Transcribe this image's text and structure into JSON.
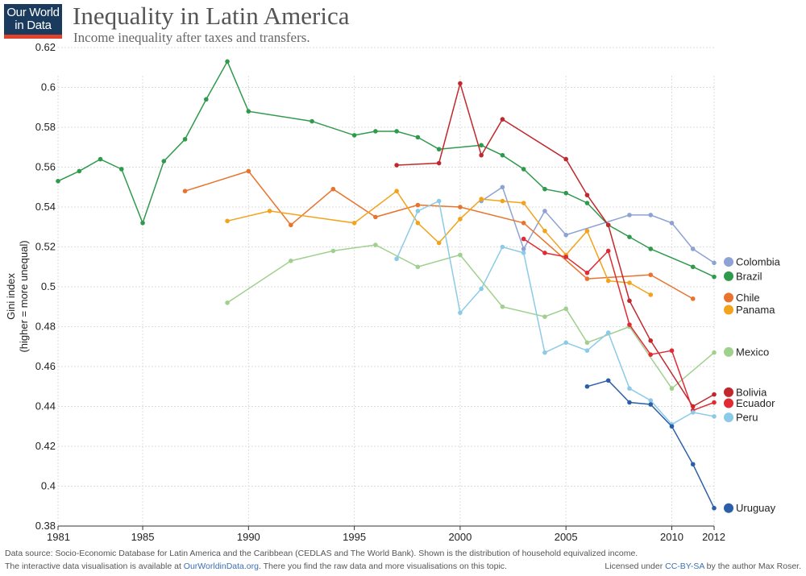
{
  "logo": {
    "line1": "Our World",
    "line2": "in Data"
  },
  "colors": {
    "background": "#ffffff",
    "grid": "#dddddd",
    "axis": "#333333",
    "link": "#3b6fb6",
    "logo_bg": "#1a3b5d",
    "logo_accent": "#e0432b"
  },
  "footer": {
    "source": "Data source: Socio-Economic Database for Latin America and the Caribbean (CEDLAS and The World Bank). Shown is the distribution of household equivalized income.",
    "interactive_pre": "The interactive data visualisation is available at ",
    "interactive_link": "OurWorldinData.org",
    "interactive_post": ". There you find the raw data and more visualisations on this topic.",
    "license_pre": "Licensed under ",
    "license_link": "CC-BY-SA",
    "license_post": " by the author Max Roser."
  },
  "chart_data": {
    "type": "line",
    "title": "Inequality in Latin America",
    "subtitle": "Income inequality after taxes and transfers.",
    "ylabel": "Gini index",
    "ylabel_sub": "(higher = more unequal)",
    "xlim": [
      1981,
      2012
    ],
    "ylim": [
      0.38,
      0.62
    ],
    "xticks": [
      1981,
      1985,
      1990,
      1995,
      2000,
      2005,
      2010,
      2012
    ],
    "yticks": [
      0.38,
      0.4,
      0.42,
      0.44,
      0.46,
      0.48,
      0.5,
      0.52,
      0.54,
      0.56,
      0.58,
      0.6,
      0.62
    ],
    "grid": true,
    "legend": "right, at end of each line",
    "series": [
      {
        "name": "Colombia",
        "color": "#8ea3d3",
        "legend_y": 0.5125,
        "x": [
          2001,
          2002,
          2003,
          2004,
          2005,
          2008,
          2009,
          2010,
          2011,
          2012
        ],
        "y": [
          0.543,
          0.55,
          0.519,
          0.538,
          0.526,
          0.536,
          0.536,
          0.532,
          0.519,
          0.512
        ]
      },
      {
        "name": "Brazil",
        "color": "#2f9a4c",
        "legend_y": 0.5053,
        "x": [
          1981,
          1982,
          1983,
          1984,
          1985,
          1986,
          1987,
          1988,
          1989,
          1990,
          1993,
          1995,
          1996,
          1997,
          1998,
          1999,
          2001,
          2002,
          2003,
          2004,
          2005,
          2006,
          2007,
          2008,
          2009,
          2011,
          2012
        ],
        "y": [
          0.553,
          0.558,
          0.564,
          0.559,
          0.532,
          0.563,
          0.574,
          0.594,
          0.613,
          0.588,
          0.583,
          0.576,
          0.578,
          0.578,
          0.575,
          0.569,
          0.571,
          0.566,
          0.559,
          0.549,
          0.547,
          0.542,
          0.531,
          0.525,
          0.519,
          0.51,
          0.505
        ]
      },
      {
        "name": "Chile",
        "color": "#e8732c",
        "legend_y": 0.4946,
        "x": [
          1987,
          1990,
          1992,
          1994,
          1996,
          1998,
          2000,
          2003,
          2006,
          2009,
          2011
        ],
        "y": [
          0.548,
          0.558,
          0.531,
          0.549,
          0.535,
          0.541,
          0.54,
          0.532,
          0.504,
          0.506,
          0.494
        ]
      },
      {
        "name": "Panama",
        "color": "#f2a31c",
        "legend_y": 0.4885,
        "x": [
          1989,
          1991,
          1995,
          1997,
          1998,
          1999,
          2000,
          2001,
          2002,
          2003,
          2004,
          2005,
          2006,
          2007,
          2008,
          2009
        ],
        "y": [
          0.533,
          0.538,
          0.532,
          0.548,
          0.532,
          0.522,
          0.534,
          0.544,
          0.543,
          0.542,
          0.528,
          0.516,
          0.528,
          0.503,
          0.502,
          0.496
        ]
      },
      {
        "name": "Mexico",
        "color": "#9fd08e",
        "legend_y": 0.4673,
        "x": [
          1989,
          1992,
          1994,
          1996,
          1998,
          2000,
          2002,
          2004,
          2005,
          2006,
          2008,
          2010,
          2012
        ],
        "y": [
          0.492,
          0.513,
          0.518,
          0.521,
          0.51,
          0.516,
          0.49,
          0.485,
          0.489,
          0.472,
          0.48,
          0.449,
          0.467
        ]
      },
      {
        "name": "Bolivia",
        "color": "#c1282d",
        "legend_y": 0.4471,
        "x": [
          1997,
          1999,
          2000,
          2001,
          2002,
          2005,
          2006,
          2007,
          2008,
          2009,
          2011,
          2012
        ],
        "y": [
          0.561,
          0.562,
          0.602,
          0.566,
          0.584,
          0.564,
          0.546,
          0.531,
          0.493,
          0.473,
          0.44,
          0.446
        ]
      },
      {
        "name": "Ecuador",
        "color": "#e02b35",
        "legend_y": 0.4416,
        "x": [
          2003,
          2004,
          2005,
          2006,
          2007,
          2008,
          2009,
          2010,
          2011,
          2012
        ],
        "y": [
          0.524,
          0.517,
          0.515,
          0.507,
          0.518,
          0.481,
          0.466,
          0.468,
          0.438,
          0.442
        ]
      },
      {
        "name": "Peru",
        "color": "#8ccbe8",
        "legend_y": 0.4345,
        "x": [
          1997,
          1998,
          1999,
          2000,
          2001,
          2002,
          2003,
          2004,
          2005,
          2006,
          2007,
          2008,
          2009,
          2010,
          2011,
          2012
        ],
        "y": [
          0.514,
          0.538,
          0.543,
          0.487,
          0.499,
          0.52,
          0.517,
          0.467,
          0.472,
          0.468,
          0.477,
          0.449,
          0.443,
          0.431,
          0.437,
          0.435
        ]
      },
      {
        "name": "Uruguay",
        "color": "#2b5fa8",
        "legend_y": 0.389,
        "x": [
          2006,
          2007,
          2008,
          2009,
          2010,
          2011,
          2012
        ],
        "y": [
          0.45,
          0.453,
          0.442,
          0.441,
          0.43,
          0.411,
          0.389
        ]
      }
    ]
  }
}
